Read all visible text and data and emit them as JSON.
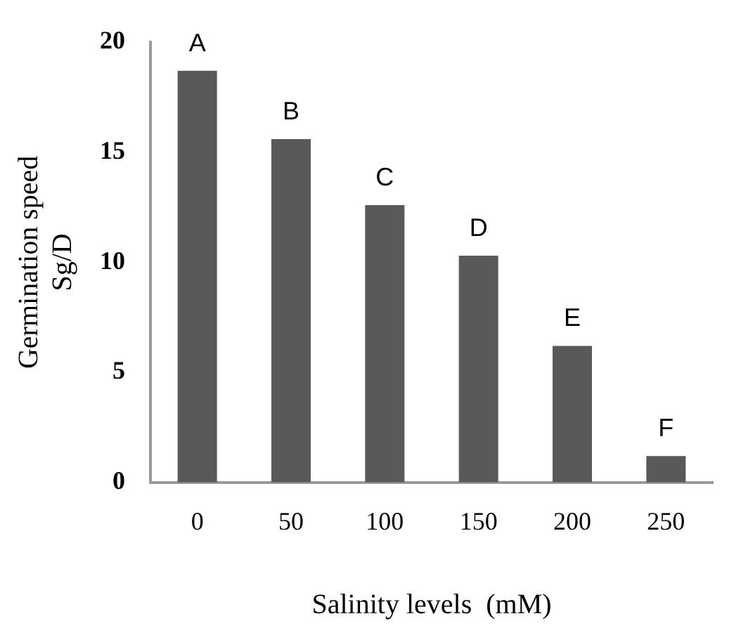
{
  "chart_data": {
    "type": "bar",
    "xlabel": "Salinity levels  (mM)",
    "ylabel": "Germination speed\nSg/D",
    "categories": [
      "0",
      "50",
      "100",
      "150",
      "200",
      "250"
    ],
    "values": [
      18.7,
      15.6,
      12.6,
      10.3,
      6.2,
      1.2
    ],
    "color": "#595959",
    "ylim": [
      0,
      20
    ],
    "yticks": [
      0,
      5,
      10,
      15,
      20
    ],
    "grid": false,
    "legend": false,
    "annotations": [
      {
        "text": "A",
        "x": "0",
        "y": 18.7
      },
      {
        "text": "B",
        "x": "50",
        "y": 15.6
      },
      {
        "text": "C",
        "x": "100",
        "y": 12.6
      },
      {
        "text": "D",
        "x": "150",
        "y": 10.3
      },
      {
        "text": "E",
        "x": "200",
        "y": 6.2
      },
      {
        "text": "F",
        "x": "250",
        "y": 1.2
      }
    ]
  }
}
